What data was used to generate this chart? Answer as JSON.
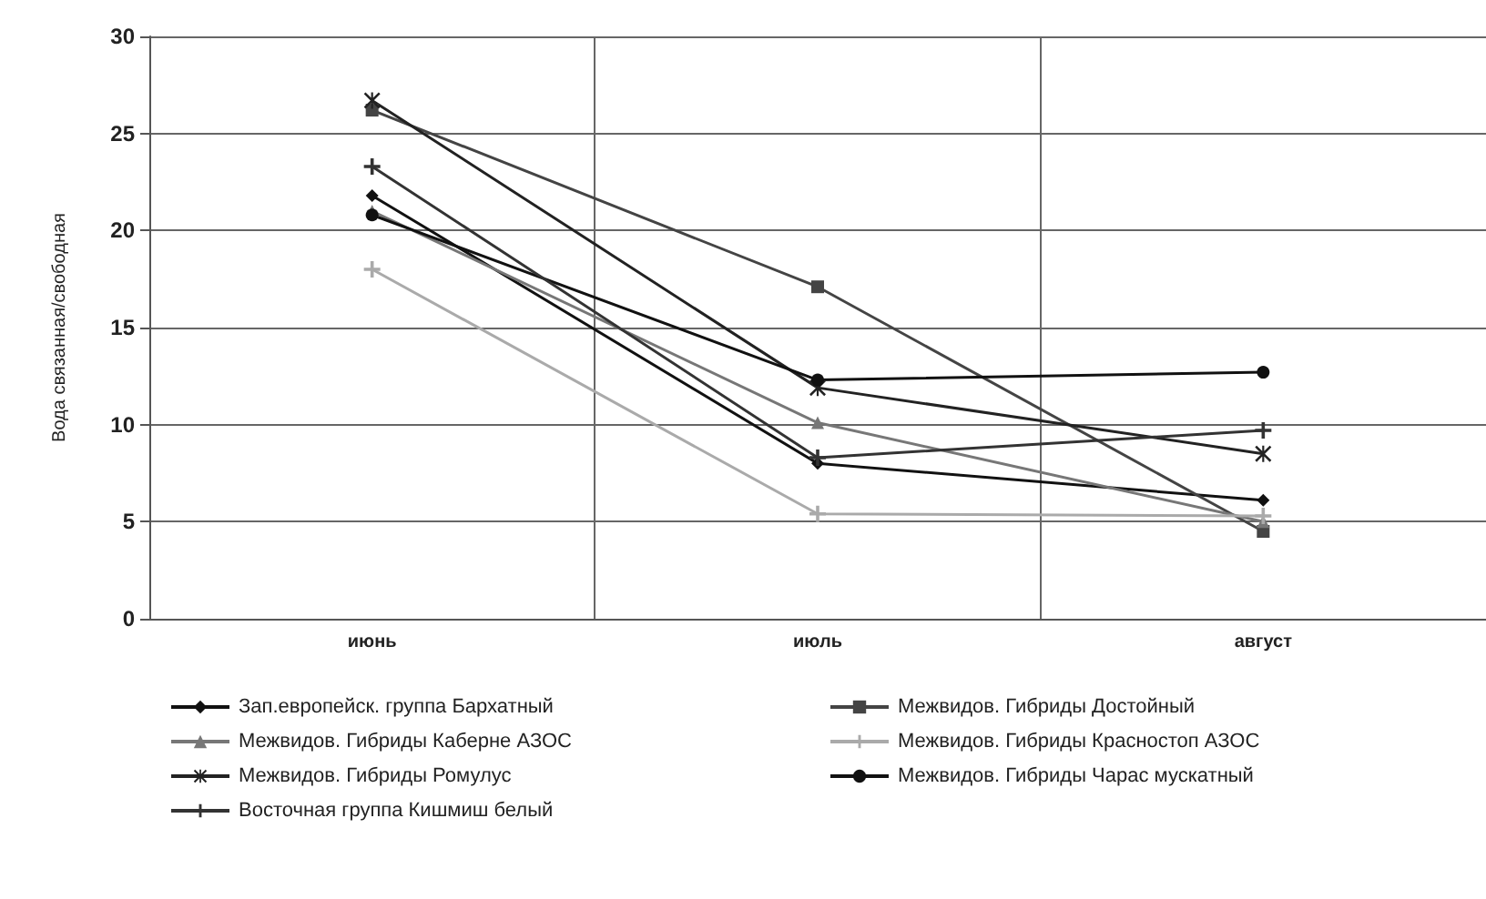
{
  "chart_data": {
    "type": "line",
    "ylabel": "Вода связанная/свободная",
    "categories": [
      "июнь",
      "июль",
      "август"
    ],
    "ylim": [
      0,
      30
    ],
    "yticks": [
      0,
      5,
      10,
      15,
      20,
      25,
      30
    ],
    "grid": true,
    "legend": "bottom",
    "series": [
      {
        "name": "Зап.европейск. группа Бархатный",
        "color": "#111111",
        "marker": "diamond",
        "values": [
          21.8,
          8.0,
          6.1
        ]
      },
      {
        "name": "Межвидов. Гибриды Достойный",
        "color": "#444444",
        "marker": "square",
        "values": [
          26.2,
          17.1,
          4.5
        ]
      },
      {
        "name": "Межвидов. Гибриды Каберне АЗОС",
        "color": "#777777",
        "marker": "triangle",
        "values": [
          21.0,
          10.1,
          5.0
        ]
      },
      {
        "name": "Межвидов. Гибриды Красностоп АЗОС",
        "color": "#aaaaaa",
        "marker": "cross",
        "values": [
          18.0,
          5.4,
          5.3
        ]
      },
      {
        "name": "Межвидов. Гибриды Ромулус",
        "color": "#222222",
        "marker": "star",
        "values": [
          26.7,
          11.9,
          8.5
        ]
      },
      {
        "name": "Межвидов. Гибриды Чарас мускатный",
        "color": "#111111",
        "marker": "circle",
        "values": [
          20.8,
          12.3,
          12.7
        ]
      },
      {
        "name": "Восточная группа Кишмиш белый",
        "color": "#333333",
        "marker": "cross",
        "values": [
          23.3,
          8.3,
          9.7
        ]
      }
    ]
  }
}
